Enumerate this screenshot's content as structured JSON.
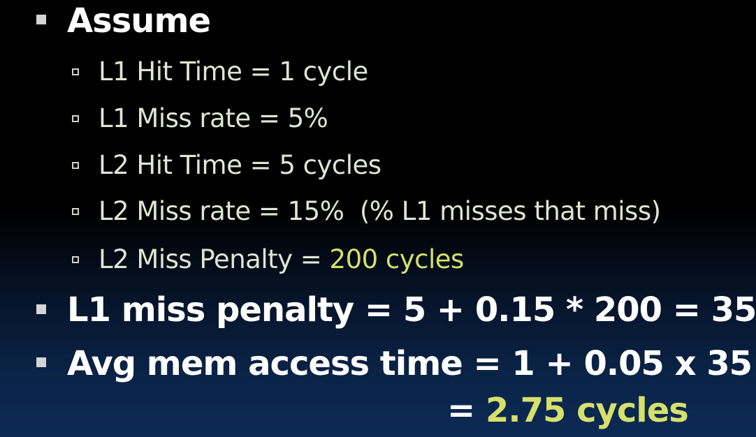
{
  "heading": "Assume",
  "assumptions": [
    {
      "text": "L1 Hit Time = 1 cycle"
    },
    {
      "text": "L1 Miss rate = 5%"
    },
    {
      "text": "L2 Hit Time = 5 cycles"
    },
    {
      "text": "L2 Miss rate = 15%  (% L1 misses that miss)"
    },
    {
      "text": "L2 Miss Penalty = ",
      "highlight": "200 cycles"
    }
  ],
  "l1_penalty": "L1 miss penalty = 5 + 0.15 * 200 = 35",
  "amat": {
    "line1": "Avg mem access time = 1 + 0.05 x 35",
    "line2_prefix": "= ",
    "line2_result": "2.75 cycles"
  },
  "colors": {
    "main_text": "#ffffff",
    "sub_text": "#dde6d2",
    "highlight": "#d6e06a"
  }
}
